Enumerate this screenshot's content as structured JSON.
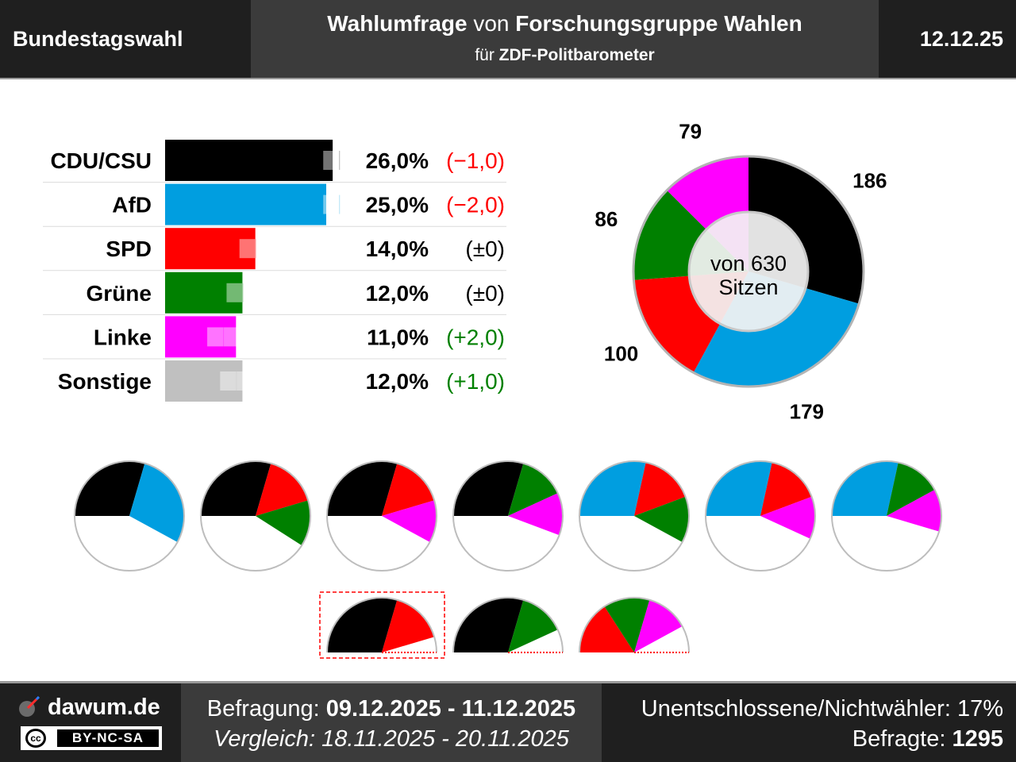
{
  "header": {
    "region": "Bundestagswahl",
    "title_part1": "Wahlumfrage",
    "title_part2": "von",
    "title_part3": "Forschungsgruppe Wahlen",
    "subtitle_part1": "für",
    "subtitle_part2": "ZDF-Politbarometer",
    "date": "12.12.25"
  },
  "chart_data": [
    {
      "type": "bar",
      "orientation": "horizontal",
      "categories": [
        "CDU/CSU",
        "AfD",
        "SPD",
        "Grüne",
        "Linke",
        "Sonstige"
      ],
      "values": [
        26.0,
        25.0,
        14.0,
        12.0,
        11.0,
        12.0
      ],
      "previous_values": [
        27.0,
        27.0,
        14.0,
        12.0,
        9.0,
        11.0
      ],
      "value_labels": [
        "26,0%",
        "25,0%",
        "14,0%",
        "12,0%",
        "11,0%",
        "12,0%"
      ],
      "change_labels": [
        "(−1,0)",
        "(−2,0)",
        "(±0)",
        "(±0)",
        "(+2,0)",
        "(+1,0)"
      ],
      "change_colors": [
        "#ff0000",
        "#ff0000",
        "#000000",
        "#000000",
        "#008000",
        "#008000"
      ],
      "colors": [
        "#000000",
        "#009ee0",
        "#ff0000",
        "#008000",
        "#ff00ff",
        "#c0c0c0"
      ],
      "xlim": [
        0,
        35
      ]
    },
    {
      "type": "pie",
      "subtype": "donut",
      "center_label_line1": "von 630",
      "center_label_line2": "Sitzen",
      "total": 630,
      "slices": [
        {
          "party": "CDU/CSU",
          "value": 186,
          "color": "#000000"
        },
        {
          "party": "AfD",
          "value": 179,
          "color": "#009ee0"
        },
        {
          "party": "SPD",
          "value": 100,
          "color": "#ff0000"
        },
        {
          "party": "Grüne",
          "value": 86,
          "color": "#008000"
        },
        {
          "party": "Linke",
          "value": 79,
          "color": "#ff00ff"
        }
      ]
    },
    {
      "type": "pie",
      "subtype": "coalitions",
      "majority_seats": 316,
      "coalitions": [
        {
          "parties": [
            "CDU/CSU",
            "AfD"
          ],
          "seats": [
            186,
            179
          ],
          "majority": true,
          "highlighted": false
        },
        {
          "parties": [
            "CDU/CSU",
            "SPD",
            "Grüne"
          ],
          "seats": [
            186,
            100,
            86
          ],
          "majority": true,
          "highlighted": false
        },
        {
          "parties": [
            "CDU/CSU",
            "SPD",
            "Linke"
          ],
          "seats": [
            186,
            100,
            79
          ],
          "majority": true,
          "highlighted": false
        },
        {
          "parties": [
            "CDU/CSU",
            "Grüne",
            "Linke"
          ],
          "seats": [
            186,
            86,
            79
          ],
          "majority": true,
          "highlighted": false
        },
        {
          "parties": [
            "AfD",
            "SPD",
            "Grüne"
          ],
          "seats": [
            179,
            100,
            86
          ],
          "majority": true,
          "highlighted": false
        },
        {
          "parties": [
            "AfD",
            "SPD",
            "Linke"
          ],
          "seats": [
            179,
            100,
            79
          ],
          "majority": true,
          "highlighted": false
        },
        {
          "parties": [
            "AfD",
            "Grüne",
            "Linke"
          ],
          "seats": [
            179,
            86,
            79
          ],
          "majority": true,
          "highlighted": false
        },
        {
          "parties": [
            "CDU/CSU",
            "SPD"
          ],
          "seats": [
            186,
            100
          ],
          "majority": false,
          "highlighted": true
        },
        {
          "parties": [
            "CDU/CSU",
            "Grüne"
          ],
          "seats": [
            186,
            86
          ],
          "majority": false,
          "highlighted": false
        },
        {
          "parties": [
            "SPD",
            "Grüne",
            "Linke"
          ],
          "seats": [
            100,
            86,
            79
          ],
          "majority": false,
          "highlighted": false
        }
      ]
    }
  ],
  "footer": {
    "brand": "dawum.de",
    "license": "BY-NC-SA",
    "license_icon": "cc",
    "survey_label": "Befragung:",
    "survey_period": "09.12.2025 - 11.12.2025",
    "compare_label": "Vergleich:",
    "compare_period": "18.11.2025 - 20.11.2025",
    "undecided_label": "Unentschlossene/Nichtwähler:",
    "undecided_value": "17%",
    "respondents_label": "Befragte:",
    "respondents_value": "1295"
  }
}
